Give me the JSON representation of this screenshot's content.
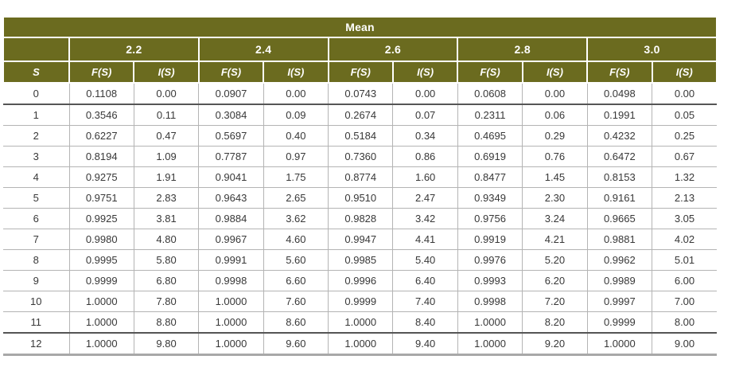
{
  "chart_data": {
    "type": "table",
    "title": "Mean",
    "row_header": "S",
    "group_columns": [
      "2.2",
      "2.4",
      "2.6",
      "2.8",
      "3.0"
    ],
    "sub_columns": [
      "F(S)",
      "I(S)"
    ],
    "rows": [
      {
        "s": "0",
        "values": [
          "0.1108",
          "0.00",
          "0.0907",
          "0.00",
          "0.0743",
          "0.00",
          "0.0608",
          "0.00",
          "0.0498",
          "0.00"
        ]
      },
      {
        "s": "1",
        "values": [
          "0.3546",
          "0.11",
          "0.3084",
          "0.09",
          "0.2674",
          "0.07",
          "0.2311",
          "0.06",
          "0.1991",
          "0.05"
        ]
      },
      {
        "s": "2",
        "values": [
          "0.6227",
          "0.47",
          "0.5697",
          "0.40",
          "0.5184",
          "0.34",
          "0.4695",
          "0.29",
          "0.4232",
          "0.25"
        ]
      },
      {
        "s": "3",
        "values": [
          "0.8194",
          "1.09",
          "0.7787",
          "0.97",
          "0.7360",
          "0.86",
          "0.6919",
          "0.76",
          "0.6472",
          "0.67"
        ]
      },
      {
        "s": "4",
        "values": [
          "0.9275",
          "1.91",
          "0.9041",
          "1.75",
          "0.8774",
          "1.60",
          "0.8477",
          "1.45",
          "0.8153",
          "1.32"
        ]
      },
      {
        "s": "5",
        "values": [
          "0.9751",
          "2.83",
          "0.9643",
          "2.65",
          "0.9510",
          "2.47",
          "0.9349",
          "2.30",
          "0.9161",
          "2.13"
        ]
      },
      {
        "s": "6",
        "values": [
          "0.9925",
          "3.81",
          "0.9884",
          "3.62",
          "0.9828",
          "3.42",
          "0.9756",
          "3.24",
          "0.9665",
          "3.05"
        ]
      },
      {
        "s": "7",
        "values": [
          "0.9980",
          "4.80",
          "0.9967",
          "4.60",
          "0.9947",
          "4.41",
          "0.9919",
          "4.21",
          "0.9881",
          "4.02"
        ]
      },
      {
        "s": "8",
        "values": [
          "0.9995",
          "5.80",
          "0.9991",
          "5.60",
          "0.9985",
          "5.40",
          "0.9976",
          "5.20",
          "0.9962",
          "5.01"
        ]
      },
      {
        "s": "9",
        "values": [
          "0.9999",
          "6.80",
          "0.9998",
          "6.60",
          "0.9996",
          "6.40",
          "0.9993",
          "6.20",
          "0.9989",
          "6.00"
        ]
      },
      {
        "s": "10",
        "values": [
          "1.0000",
          "7.80",
          "1.0000",
          "7.60",
          "0.9999",
          "7.40",
          "0.9998",
          "7.20",
          "0.9997",
          "7.00"
        ]
      },
      {
        "s": "11",
        "values": [
          "1.0000",
          "8.80",
          "1.0000",
          "8.60",
          "1.0000",
          "8.40",
          "1.0000",
          "8.20",
          "0.9999",
          "8.00"
        ]
      },
      {
        "s": "12",
        "values": [
          "1.0000",
          "9.80",
          "1.0000",
          "9.60",
          "1.0000",
          "9.40",
          "1.0000",
          "9.20",
          "1.0000",
          "9.00"
        ]
      }
    ],
    "layout": {
      "grid": true,
      "header_position": "top"
    },
    "colors": {
      "header_bg": "#6b6b1f",
      "header_text": "#ffffff",
      "body_text": "#383838",
      "grid_line": "#b4b4b4"
    }
  }
}
